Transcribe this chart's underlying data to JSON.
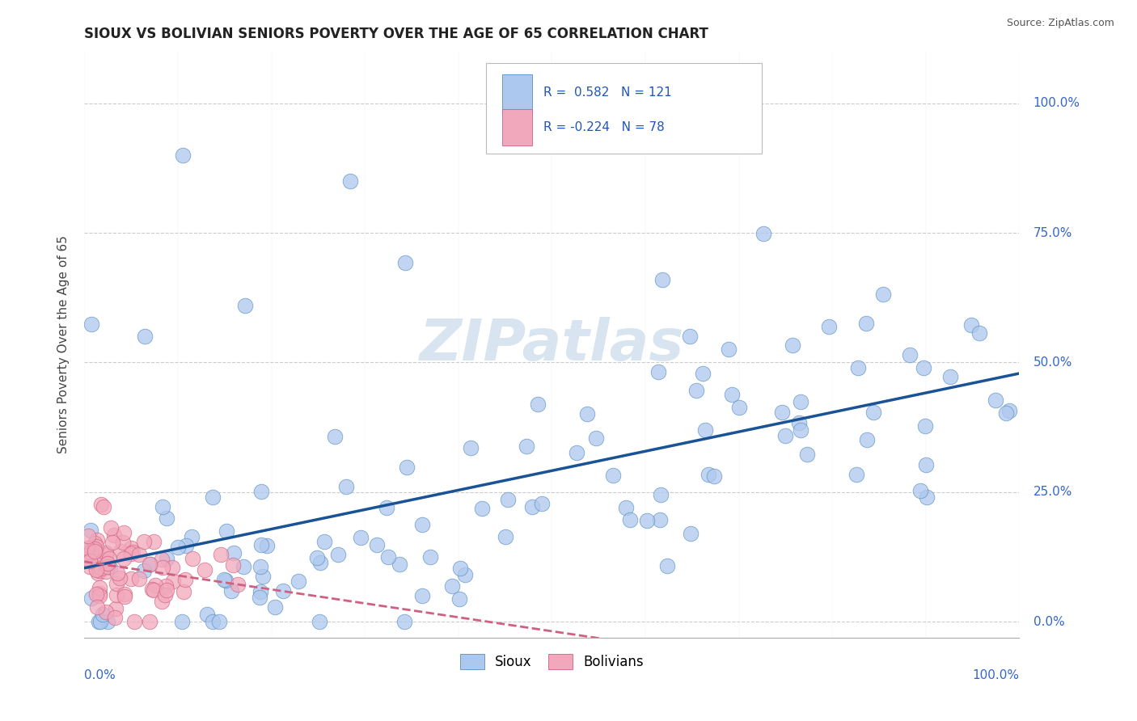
{
  "title": "SIOUX VS BOLIVIAN SENIORS POVERTY OVER THE AGE OF 65 CORRELATION CHART",
  "source": "Source: ZipAtlas.com",
  "ylabel": "Seniors Poverty Over the Age of 65",
  "ytick_labels": [
    "0.0%",
    "25.0%",
    "50.0%",
    "75.0%",
    "100.0%"
  ],
  "ytick_values": [
    0.0,
    0.25,
    0.5,
    0.75,
    1.0
  ],
  "sioux_R": 0.582,
  "sioux_N": 121,
  "bolivian_R": -0.224,
  "bolivian_N": 78,
  "sioux_color": "#adc8ee",
  "bolivian_color": "#f2a8bc",
  "sioux_edge_color": "#5a8fc0",
  "bolivian_edge_color": "#d06080",
  "sioux_line_color": "#1a5296",
  "bolivian_line_color": "#d06080",
  "watermark_color": "#d8e4f0",
  "background_color": "#ffffff",
  "title_fontsize": 12,
  "legend_R_color": "#2255bb",
  "axis_label_color": "#3366cc",
  "grid_color": "#cccccc"
}
